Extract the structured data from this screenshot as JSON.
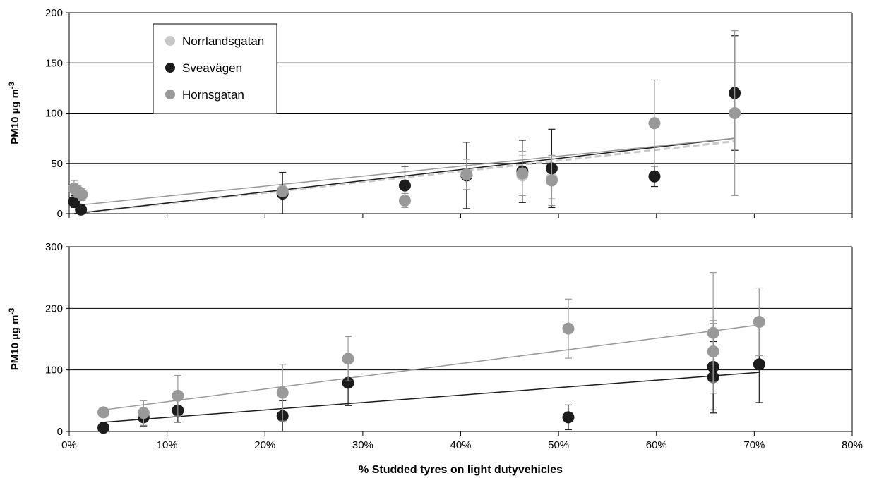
{
  "colors": {
    "Norrlandsgatan": "#c8c8c8",
    "Sveavägen": "#1c1c1c",
    "Hornsgatan": "#999999",
    "grid": "#000000"
  },
  "chart_data": [
    {
      "type": "scatter",
      "panel": "top",
      "ylabel": "PM10 µg m",
      "ylabel_sup": "-3",
      "xlim": [
        0,
        80
      ],
      "ylim": [
        0,
        200
      ],
      "yticks": [
        0,
        50,
        100,
        150,
        200
      ],
      "ytick_labels": [
        "0",
        "50",
        "100",
        "150",
        "200"
      ],
      "grid": "horizontal",
      "legend": {
        "placement": "top-left",
        "entries": [
          "Norrlandsgatan",
          "Sveavägen",
          "Hornsgatan"
        ]
      },
      "series": [
        {
          "name": "Norrlandsgatan",
          "points": [
            {
              "x": 0.6,
              "y": 24,
              "err": 6
            },
            {
              "x": 1.0,
              "y": 18,
              "err": 5
            },
            {
              "x": 21.8,
              "y": 23,
              "err": 5
            },
            {
              "x": 46.3,
              "y": 38,
              "err": 20
            },
            {
              "x": 49.3,
              "y": 35,
              "err": 20
            }
          ],
          "trend": {
            "x0": 0.5,
            "y0": 0,
            "x1": 68,
            "y1": 72,
            "dash": true
          }
        },
        {
          "name": "Sveavägen",
          "points": [
            {
              "x": 0.5,
              "y": 12,
              "err": 6
            },
            {
              "x": 1.2,
              "y": 4,
              "err": 5
            },
            {
              "x": 21.8,
              "y": 20,
              "err": 21
            },
            {
              "x": 34.3,
              "y": 28,
              "err": 19
            },
            {
              "x": 40.6,
              "y": 38,
              "err": 33
            },
            {
              "x": 46.3,
              "y": 42,
              "err": 31
            },
            {
              "x": 49.3,
              "y": 45,
              "err": 39
            },
            {
              "x": 59.8,
              "y": 37,
              "err": 10
            },
            {
              "x": 68.0,
              "y": 120,
              "err": 57
            }
          ],
          "trend": {
            "x0": 0.5,
            "y0": 0,
            "x1": 68,
            "y1": 75,
            "dash": false
          }
        },
        {
          "name": "Hornsgatan",
          "points": [
            {
              "x": 0.5,
              "y": 25,
              "err": 8
            },
            {
              "x": 0.9,
              "y": 22,
              "err": 6
            },
            {
              "x": 1.3,
              "y": 19,
              "err": 6
            },
            {
              "x": 21.8,
              "y": 22,
              "err": 4
            },
            {
              "x": 34.3,
              "y": 13,
              "err": 7
            },
            {
              "x": 40.6,
              "y": 39,
              "err": 15
            },
            {
              "x": 46.3,
              "y": 40,
              "err": 22
            },
            {
              "x": 49.3,
              "y": 33,
              "err": 25
            },
            {
              "x": 59.8,
              "y": 90,
              "err": 43
            },
            {
              "x": 68.0,
              "y": 100,
              "err": 82
            }
          ],
          "trend": {
            "x0": 0.5,
            "y0": 8,
            "x1": 68,
            "y1": 75,
            "dash": false
          }
        }
      ]
    },
    {
      "type": "scatter",
      "panel": "bottom",
      "ylabel": "PM10 µg m",
      "ylabel_sup": "-3",
      "xlabel": "% Studded tyres on light dutyvehicles",
      "xlim": [
        0,
        80
      ],
      "ylim": [
        0,
        300
      ],
      "yticks": [
        0,
        100,
        200,
        300
      ],
      "ytick_labels": [
        "0",
        "100",
        "200",
        "300"
      ],
      "xticks": [
        0,
        10,
        20,
        30,
        40,
        50,
        60,
        70,
        80
      ],
      "xtick_labels": [
        "0%",
        "10%",
        "20%",
        "30%",
        "40%",
        "50%",
        "60%",
        "70%",
        "80%"
      ],
      "grid": "horizontal",
      "series": [
        {
          "name": "Sveavägen",
          "points": [
            {
              "x": 3.5,
              "y": 6,
              "err": 8
            },
            {
              "x": 7.6,
              "y": 23,
              "err": 14
            },
            {
              "x": 11.1,
              "y": 34,
              "err": 19
            },
            {
              "x": 21.8,
              "y": 25,
              "err": 25
            },
            {
              "x": 28.5,
              "y": 79,
              "err": 37
            },
            {
              "x": 51.0,
              "y": 23,
              "err": 20
            },
            {
              "x": 65.8,
              "y": 105,
              "err": 70
            },
            {
              "x": 65.8,
              "y": 88,
              "err": 58
            },
            {
              "x": 70.5,
              "y": 109,
              "err": 62
            }
          ],
          "trend": {
            "x0": 3.5,
            "y0": 15,
            "x1": 70.5,
            "y1": 96,
            "dash": false
          }
        },
        {
          "name": "Hornsgatan",
          "points": [
            {
              "x": 3.5,
              "y": 31,
              "err": 7
            },
            {
              "x": 7.6,
              "y": 30,
              "err": 20
            },
            {
              "x": 11.1,
              "y": 58,
              "err": 33
            },
            {
              "x": 21.8,
              "y": 63,
              "err": 46
            },
            {
              "x": 28.5,
              "y": 118,
              "err": 36
            },
            {
              "x": 51.0,
              "y": 167,
              "err": 48
            },
            {
              "x": 65.8,
              "y": 160,
              "err": 98
            },
            {
              "x": 65.8,
              "y": 130,
              "err": 50
            },
            {
              "x": 70.5,
              "y": 178,
              "err": 55
            }
          ],
          "trend": {
            "x0": 3.5,
            "y0": 35,
            "x1": 70.5,
            "y1": 173,
            "dash": false
          }
        }
      ]
    }
  ]
}
